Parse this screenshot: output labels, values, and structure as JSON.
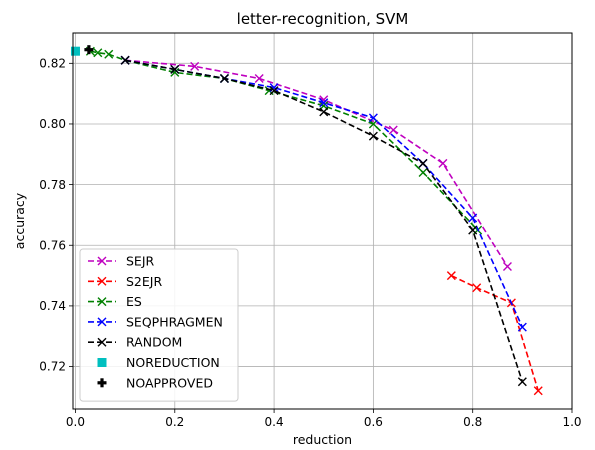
{
  "chart_data": {
    "type": "line",
    "title": "letter-recognition, SVM",
    "xlabel": "reduction",
    "ylabel": "accuracy",
    "xlim": [
      -0.005,
      1.0
    ],
    "ylim": [
      0.706,
      0.83
    ],
    "xticks": [
      0.0,
      0.2,
      0.4,
      0.6,
      0.8,
      1.0
    ],
    "xtick_labels": [
      "0.0",
      "0.2",
      "0.4",
      "0.6",
      "0.8",
      "1.0"
    ],
    "yticks": [
      0.72,
      0.74,
      0.76,
      0.78,
      0.8,
      0.82
    ],
    "ytick_labels": [
      "0.72",
      "0.74",
      "0.76",
      "0.78",
      "0.80",
      "0.82"
    ],
    "grid": true,
    "legend_position": "lower-left",
    "series": [
      {
        "name": "SEJR",
        "color": "#bf00bf",
        "marker": "x",
        "linestyle": "dashed",
        "x": [
          0.1,
          0.24,
          0.37,
          0.5,
          0.64,
          0.74,
          0.87
        ],
        "y": [
          0.821,
          0.819,
          0.815,
          0.808,
          0.798,
          0.787,
          0.753
        ]
      },
      {
        "name": "S2EJR",
        "color": "#ff0000",
        "marker": "x",
        "linestyle": "dashed",
        "x": [
          0.757,
          0.808,
          0.878,
          0.932
        ],
        "y": [
          0.75,
          0.746,
          0.741,
          0.712
        ]
      },
      {
        "name": "ES",
        "color": "#008000",
        "marker": "x",
        "linestyle": "dashed",
        "x": [
          0.03,
          0.045,
          0.067,
          0.1,
          0.2,
          0.3,
          0.39,
          0.5,
          0.6,
          0.7,
          0.81
        ],
        "y": [
          0.824,
          0.8235,
          0.823,
          0.821,
          0.817,
          0.815,
          0.811,
          0.806,
          0.8,
          0.784,
          0.765
        ]
      },
      {
        "name": "SEQPHRAGMEN",
        "color": "#0000ff",
        "marker": "x",
        "linestyle": "dashed",
        "x": [
          0.1,
          0.2,
          0.3,
          0.4,
          0.5,
          0.6,
          0.7,
          0.8,
          0.9
        ],
        "y": [
          0.821,
          0.818,
          0.815,
          0.812,
          0.807,
          0.802,
          0.787,
          0.769,
          0.733
        ]
      },
      {
        "name": "RANDOM",
        "color": "#000000",
        "marker": "x",
        "linestyle": "dashed",
        "x": [
          0.1,
          0.2,
          0.3,
          0.4,
          0.5,
          0.6,
          0.7,
          0.8,
          0.9
        ],
        "y": [
          0.821,
          0.818,
          0.815,
          0.811,
          0.804,
          0.796,
          0.787,
          0.765,
          0.715
        ]
      },
      {
        "name": "NOREDUCTION",
        "color": "#00bfbf",
        "marker": "square",
        "linestyle": "none",
        "x": [
          0.0
        ],
        "y": [
          0.824
        ]
      },
      {
        "name": "NOAPPROVED",
        "color": "#000000",
        "marker": "plus",
        "linestyle": "none",
        "x": [
          0.027
        ],
        "y": [
          0.8245
        ]
      }
    ]
  }
}
